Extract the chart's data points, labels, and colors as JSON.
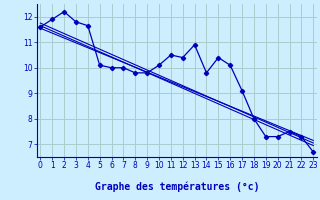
{
  "xlabel": "Graphe des températures (°c)",
  "background_color": "#cceeff",
  "grid_color": "#aacccc",
  "line_color": "#0000bb",
  "x_data": [
    0,
    1,
    2,
    3,
    4,
    5,
    6,
    7,
    8,
    9,
    10,
    11,
    12,
    13,
    14,
    15,
    16,
    17,
    18,
    19,
    20,
    21,
    22,
    23
  ],
  "temp_data": [
    11.6,
    11.9,
    12.2,
    11.8,
    11.65,
    10.1,
    10.0,
    10.0,
    9.8,
    9.8,
    10.1,
    10.5,
    10.4,
    10.9,
    9.8,
    10.4,
    10.1,
    9.1,
    8.0,
    7.3,
    7.3,
    7.5,
    7.3,
    6.7
  ],
  "trend_lines": [
    {
      "x0": 0,
      "y0": 11.75,
      "x1": 23,
      "y1": 7.05
    },
    {
      "x0": 0,
      "y0": 11.65,
      "x1": 23,
      "y1": 6.95
    },
    {
      "x0": 0,
      "y0": 11.55,
      "x1": 23,
      "y1": 7.15
    }
  ],
  "ylim": [
    6.5,
    12.5
  ],
  "yticks": [
    7,
    8,
    9,
    10,
    11,
    12
  ],
  "xlim": [
    -0.3,
    23.3
  ],
  "xticks": [
    0,
    1,
    2,
    3,
    4,
    5,
    6,
    7,
    8,
    9,
    10,
    11,
    12,
    13,
    14,
    15,
    16,
    17,
    18,
    19,
    20,
    21,
    22,
    23
  ],
  "tick_fontsize": 5.5,
  "xlabel_fontsize": 7.0
}
